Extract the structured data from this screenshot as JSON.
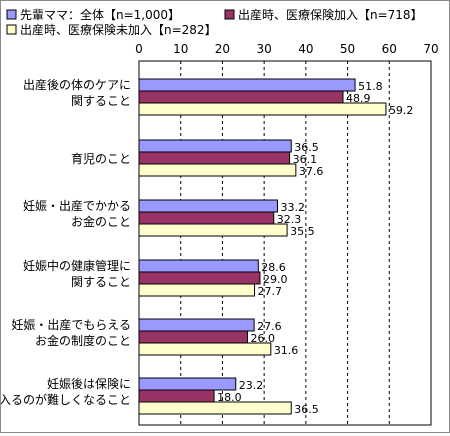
{
  "chart_data": {
    "type": "bar",
    "orientation": "horizontal",
    "categories": [
      [
        "出産後の体のケアに",
        "関すること"
      ],
      [
        "育児のこと"
      ],
      [
        "妊娠・出産でかかる",
        "お金のこと"
      ],
      [
        "妊娠中の健康管理に",
        "関すること"
      ],
      [
        "妊娠・出産でもらえる",
        "お金の制度のこと"
      ],
      [
        "妊娠後は保険に",
        "入るのが難しくなること"
      ]
    ],
    "series": [
      {
        "name": "先輩ママ：全体【n=1,000】",
        "color": "#9999ff",
        "values": [
          51.8,
          36.5,
          33.2,
          28.6,
          27.6,
          23.2
        ]
      },
      {
        "name": "出産時、医療保険加入【n=718】",
        "color": "#993366",
        "values": [
          48.9,
          36.1,
          32.3,
          29.0,
          26.0,
          18.0
        ]
      },
      {
        "name": "出産時、医療保険未加入【n=282】",
        "color": "#ffffcc",
        "values": [
          59.2,
          37.6,
          35.5,
          27.7,
          31.6,
          36.5
        ]
      }
    ],
    "xlim": [
      0,
      70
    ],
    "xticks": [
      "0",
      "10",
      "20",
      "30",
      "40",
      "50",
      "60",
      "70"
    ],
    "grid": true,
    "legend_position": "top"
  }
}
